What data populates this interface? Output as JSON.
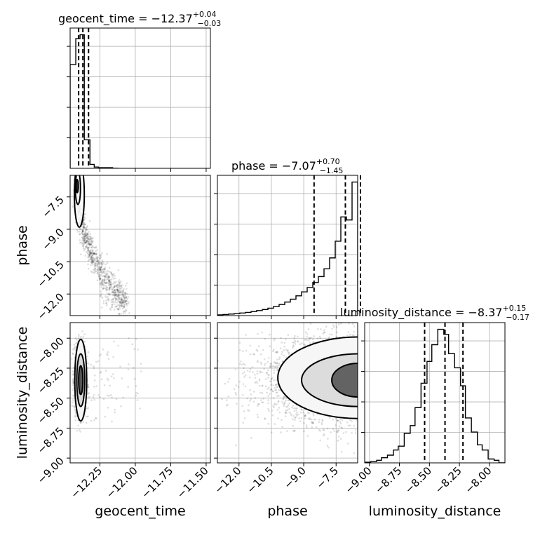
{
  "chart_data": {
    "type": "corner",
    "parameters": [
      "geocent_time",
      "phase",
      "luminosity_distance"
    ],
    "axis_labels": [
      "geocent_time",
      "phase",
      "luminosity_distance"
    ],
    "titles": [
      {
        "param": "geocent_time",
        "text": "geocent_time = −12.37",
        "plus": "+0.04",
        "minus": "−0.03"
      },
      {
        "param": "phase",
        "text": "phase = −7.07",
        "plus": "+0.70",
        "minus": "−1.45"
      },
      {
        "param": "luminosity_distance",
        "text": "luminosity_distance = −8.37",
        "plus": "+0.15",
        "minus": "−0.17"
      }
    ],
    "ranges": {
      "geocent_time": [
        -12.46,
        -11.47
      ],
      "phase": [
        -13.0,
        -6.5
      ],
      "luminosity_distance": [
        -9.04,
        -7.87
      ]
    },
    "ticks": {
      "geocent_time": {
        "values": [
          -12.25,
          -12.0,
          -11.75,
          -11.5
        ],
        "labels": [
          "−12.25",
          "−12.00",
          "−11.75",
          "−11.50"
        ]
      },
      "phase": {
        "values": [
          -12.0,
          -10.5,
          -9.0,
          -7.5
        ],
        "labels": [
          "−12.0",
          "−10.5",
          "−9.0",
          "−7.5"
        ]
      },
      "luminosity_distance": {
        "values": [
          -9.0,
          -8.75,
          -8.5,
          -8.25,
          -8.0
        ],
        "labels": [
          "−9.00",
          "−8.75",
          "−8.50",
          "−8.25",
          "−8.00"
        ]
      }
    },
    "marginal_histograms": {
      "geocent_time": {
        "bin_edges": [
          -12.46,
          -12.42,
          -12.39,
          -12.36,
          -12.32,
          -12.29,
          -12.26,
          -12.22,
          -12.19,
          -12.16,
          -12.12
        ],
        "counts": [
          80,
          100,
          103,
          22,
          3,
          1,
          0.5,
          0.5,
          0.5,
          0
        ],
        "quantiles": [
          -12.4,
          -12.37,
          -12.33
        ]
      },
      "phase": {
        "bin_edges": [
          -13.0,
          -12.74,
          -12.48,
          -12.22,
          -11.96,
          -11.7,
          -11.44,
          -11.18,
          -10.92,
          -10.66,
          -10.4,
          -10.14,
          -9.88,
          -9.62,
          -9.36,
          -9.1,
          -8.84,
          -8.58,
          -8.32,
          -8.06,
          -7.8,
          -7.54,
          -7.28,
          -7.02,
          -6.76,
          -6.5
        ],
        "counts": [
          0.5,
          0.7,
          1.0,
          1.3,
          1.7,
          2.1,
          2.7,
          3.3,
          4.0,
          4.9,
          6.0,
          7.3,
          8.9,
          10.8,
          13.0,
          15.6,
          18.5,
          21.8,
          25.7,
          30.8,
          38.0,
          49.0,
          65.0,
          63.0,
          88.0
        ],
        "quantiles": [
          -8.52,
          -7.07,
          -6.37
        ]
      },
      "luminosity_distance": {
        "bin_edges": [
          -9.04,
          -8.99,
          -8.94,
          -8.9,
          -8.85,
          -8.8,
          -8.76,
          -8.71,
          -8.66,
          -8.62,
          -8.57,
          -8.52,
          -8.48,
          -8.43,
          -8.38,
          -8.34,
          -8.29,
          -8.24,
          -8.2,
          -8.15,
          -8.1,
          -8.06,
          -8.01,
          -7.96,
          -7.92,
          -7.87
        ],
        "counts": [
          0.5,
          1,
          2,
          4,
          6,
          10,
          13,
          23,
          29,
          43,
          62,
          79,
          92,
          104,
          100,
          85,
          74,
          60,
          35,
          24,
          14,
          10,
          3,
          2,
          0
        ],
        "quantiles": [
          -8.54,
          -8.37,
          -8.22
        ]
      }
    },
    "joint_2d": [
      {
        "x": "geocent_time",
        "y": "phase",
        "description_points": "dense at geocent_time ≈ −12.40, phase ≈ −7.3; tail towards geocent_time ≈ −12.0, phase ≈ −12.5"
      },
      {
        "x": "geocent_time",
        "y": "luminosity_distance",
        "center": [
          -12.38,
          -8.35
        ]
      },
      {
        "x": "phase",
        "y": "luminosity_distance",
        "center": [
          -6.8,
          -8.35
        ]
      }
    ],
    "grid": true,
    "legend": "none"
  }
}
